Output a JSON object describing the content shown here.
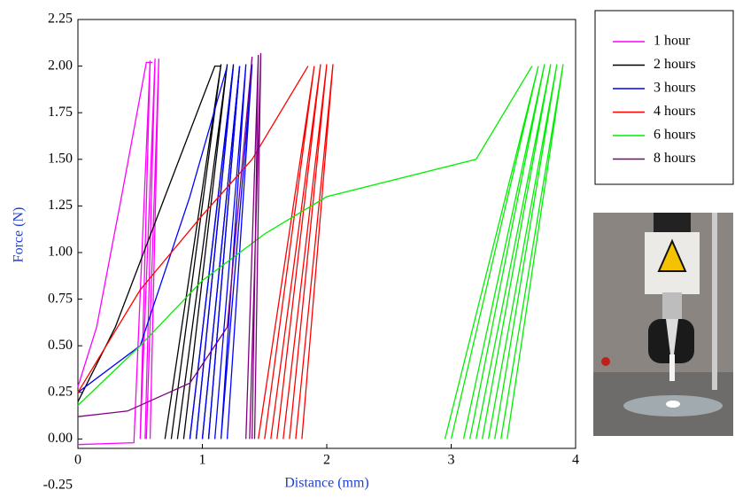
{
  "chart_data": {
    "type": "line",
    "x_label": "Distance (mm)",
    "y_label": "Force   (N)",
    "xlim": [
      0,
      4
    ],
    "ylim": [
      -0.25,
      2.25
    ],
    "xticks": [
      0,
      1,
      2,
      3,
      4
    ],
    "yticks": [
      -0.25,
      {
        "value": 0,
        "label": "0.00"
      },
      0.25,
      {
        "value": 0.5,
        "label": "0.50"
      },
      0.75,
      {
        "value": 1,
        "label": "1.00"
      },
      1.25,
      {
        "value": 1.5,
        "label": "1.50"
      },
      1.75,
      {
        "value": 2,
        "label": "2.00"
      },
      2.25
    ],
    "legend": "outside-right",
    "series": [
      {
        "name": "1 hour",
        "color": "#ff00ff",
        "x": [
          0,
          0.15,
          0.35,
          0.55,
          0.6,
          null,
          0,
          0.45,
          0.58,
          0.5,
          null,
          0.5,
          0.62,
          0.54,
          null,
          0.55,
          0.65,
          0.58
        ],
        "values": [
          0.28,
          0.6,
          1.3,
          2.02,
          2.02,
          null,
          -0.03,
          -0.02,
          2.03,
          0,
          null,
          0,
          2.04,
          0,
          null,
          0,
          2.04,
          0
        ]
      },
      {
        "name": "2 hours",
        "color": "#000000",
        "x": [
          0,
          0.3,
          0.7,
          1.1,
          1.15,
          null,
          0.7,
          1.15,
          0.75,
          null,
          0.8,
          1.2,
          0.85,
          null,
          0.9,
          1.25,
          0.95,
          null,
          1.0,
          1.3,
          1.05
        ],
        "values": [
          0.2,
          0.6,
          1.3,
          2.0,
          2.0,
          null,
          0,
          2.01,
          0,
          null,
          0,
          2.01,
          0,
          null,
          0,
          2.01,
          0,
          null,
          0,
          2.0,
          0
        ]
      },
      {
        "name": "3 hours",
        "color": "#0000ff",
        "x": [
          0,
          0.5,
          0.9,
          1.2,
          null,
          0.9,
          1.25,
          0.95,
          null,
          1.0,
          1.3,
          1.05,
          null,
          1.1,
          1.35,
          1.15,
          null,
          1.15,
          1.4,
          1.2
        ],
        "values": [
          0.25,
          0.5,
          1.3,
          2.0,
          null,
          0,
          2.0,
          0,
          null,
          0,
          2.0,
          0,
          null,
          0,
          2.01,
          0,
          null,
          0,
          2.01,
          0
        ]
      },
      {
        "name": "4 hours",
        "color": "#ff0000",
        "x": [
          0,
          0.5,
          1.0,
          1.4,
          1.85,
          null,
          1.45,
          1.9,
          1.5,
          null,
          1.55,
          1.95,
          1.6,
          null,
          1.65,
          2.0,
          1.7,
          null,
          1.75,
          2.05,
          1.8
        ],
        "values": [
          0.25,
          0.8,
          1.2,
          1.5,
          2.0,
          null,
          0,
          2.0,
          0,
          null,
          0,
          2.01,
          0,
          null,
          0,
          2.01,
          0,
          null,
          0,
          2.01,
          0
        ]
      },
      {
        "name": "6 hours",
        "color": "#00ee00",
        "x": [
          0,
          0.5,
          1.0,
          1.5,
          2.0,
          3.2,
          3.65,
          null,
          2.95,
          3.7,
          3.0,
          null,
          3.1,
          3.75,
          3.15,
          null,
          3.2,
          3.8,
          3.25,
          null,
          3.3,
          3.85,
          3.35,
          null,
          3.4,
          3.9,
          3.45
        ],
        "values": [
          0.18,
          0.5,
          0.85,
          1.1,
          1.3,
          1.5,
          2.0,
          null,
          0,
          2.0,
          0,
          null,
          0,
          2.01,
          0,
          null,
          0,
          2.01,
          0,
          null,
          0,
          2.01,
          0,
          null,
          0,
          2.01,
          0
        ]
      },
      {
        "name": "8 hours",
        "color": "#7f007f",
        "x": [
          0,
          0.4,
          0.9,
          1.2,
          1.4,
          null,
          1.35,
          1.45,
          1.4,
          null,
          1.38,
          1.47,
          1.42
        ],
        "values": [
          0.12,
          0.15,
          0.3,
          0.6,
          2.05,
          null,
          0,
          2.06,
          0,
          null,
          0,
          2.07,
          0
        ]
      }
    ]
  }
}
